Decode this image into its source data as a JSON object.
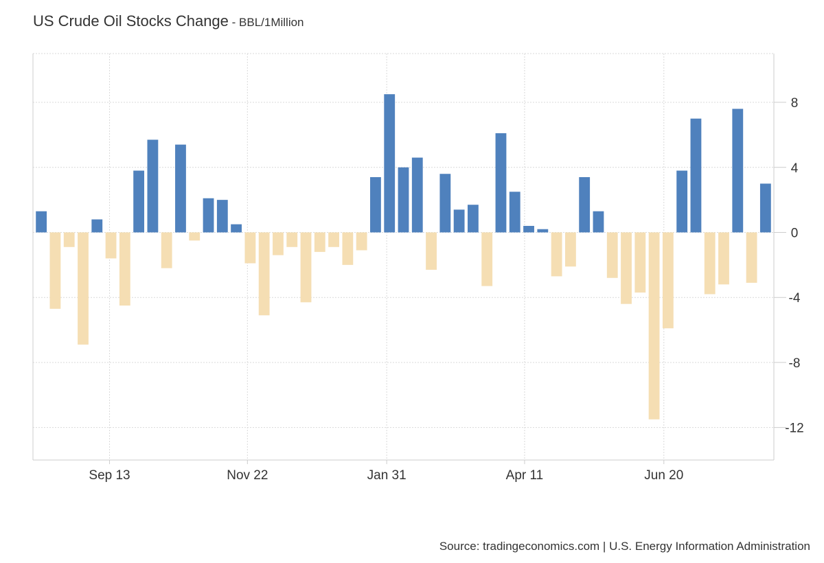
{
  "header": {
    "title": "US Crude Oil Stocks Change",
    "subtitle": " - BBL/1Million"
  },
  "footer": {
    "source": "Source: tradingeconomics.com | U.S. Energy Information Administration"
  },
  "colors": {
    "positive": "#4f81bd",
    "negative": "#f5deb3",
    "grid": "#d9d9d9",
    "axis": "#cccccc",
    "text": "#333333"
  },
  "chart_data": {
    "type": "bar",
    "title": "US Crude Oil Stocks Change",
    "subtitle": "BBL/1Million",
    "xlabel": "",
    "ylabel": "",
    "ylim": [
      -14,
      11
    ],
    "y_ticks": [
      -12,
      -8,
      -4,
      0,
      4,
      8
    ],
    "y_axis_side": "right",
    "grid": true,
    "x_tick_labels": [
      {
        "label": "Sep 13",
        "index": 5.4
      },
      {
        "label": "Nov 22",
        "index": 15.3
      },
      {
        "label": "Jan 31",
        "index": 25.3
      },
      {
        "label": "Apr 11",
        "index": 35.2
      },
      {
        "label": "Jun 20",
        "index": 45.2
      }
    ],
    "values": [
      1.3,
      -4.7,
      -0.9,
      -6.9,
      0.8,
      -1.6,
      -4.5,
      3.8,
      5.7,
      -2.2,
      5.4,
      -0.5,
      2.1,
      2.0,
      0.5,
      -1.9,
      -5.1,
      -1.4,
      -0.9,
      -4.3,
      -1.2,
      -0.9,
      -2.0,
      -1.1,
      3.4,
      8.5,
      4.0,
      4.6,
      -2.3,
      3.6,
      1.4,
      1.7,
      -3.3,
      6.1,
      2.5,
      0.4,
      0.2,
      -2.7,
      -2.1,
      3.4,
      1.3,
      -2.8,
      -4.4,
      -3.7,
      -11.5,
      -5.9,
      3.8,
      7.0,
      -3.8,
      -3.2,
      7.6,
      -3.1,
      3.0
    ]
  }
}
